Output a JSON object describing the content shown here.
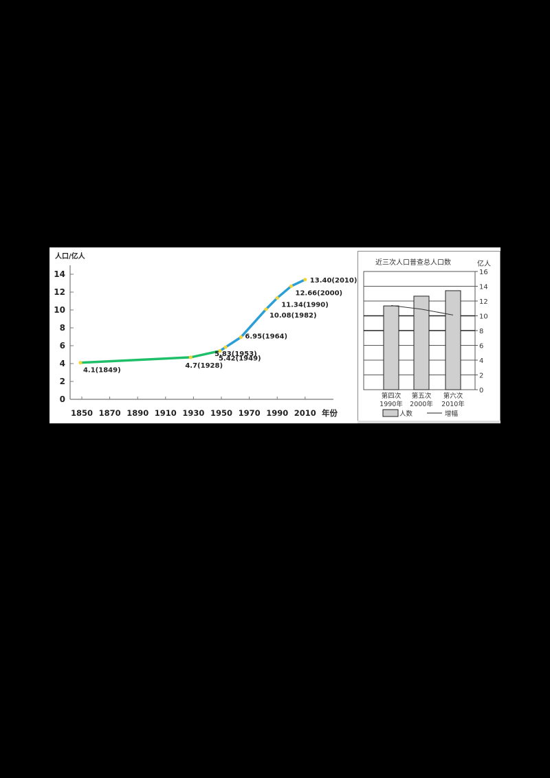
{
  "chart_data": [
    {
      "type": "line",
      "title": "",
      "ylabel": "人口/亿人",
      "xlabel": "年份",
      "ylim": [
        0,
        15
      ],
      "xlim": [
        1840,
        2030
      ],
      "yticks": [
        0,
        2,
        4,
        6,
        8,
        10,
        12,
        14
      ],
      "xticks": [
        1850,
        1870,
        1890,
        1910,
        1930,
        1950,
        1970,
        1990,
        2010
      ],
      "grid": false,
      "x": [
        1849,
        1928,
        1949,
        1953,
        1964,
        1982,
        1990,
        2000,
        2010
      ],
      "values": [
        4.1,
        4.7,
        5.42,
        5.83,
        6.95,
        10.08,
        11.34,
        12.66,
        13.4
      ],
      "annotations": [
        "4.1(1849)",
        "4.7(1928)",
        "5.42(1949)",
        "5.83(1953)",
        "6.95(1964)",
        "10.08(1982)",
        "11.34(1990)",
        "12.66(2000)",
        "13.40(2010)"
      ],
      "segments": [
        {
          "name": "before-1949",
          "color": "#1fbf6a",
          "from": 1849,
          "to": 1949
        },
        {
          "name": "after-1949",
          "color": "#2a9fd6",
          "from": 1949,
          "to": 2010
        }
      ],
      "marker_color": "#f2d43a"
    },
    {
      "type": "bar",
      "title": "近三次人口普查总人口数",
      "ylabel": "亿人",
      "ylim": [
        0,
        16
      ],
      "yticks": [
        0,
        2,
        4,
        6,
        8,
        10,
        12,
        14,
        16
      ],
      "grid": true,
      "categories": [
        "第四次\n1990年",
        "第五次\n2000年",
        "第六次\n2010年"
      ],
      "category_lines": [
        [
          "第四次",
          "1990年"
        ],
        [
          "第五次",
          "2000年"
        ],
        [
          "第六次",
          "2010年"
        ]
      ],
      "series": [
        {
          "name": "人数",
          "type": "bar",
          "values": [
            11.34,
            12.66,
            13.4
          ],
          "color": "#cfcfcf"
        },
        {
          "name": "增幅",
          "type": "line",
          "values": [
            11.4,
            10.9,
            10.1
          ],
          "color": "#333333"
        }
      ],
      "legend": [
        "人数",
        "增幅"
      ],
      "legend_position": "bottom"
    }
  ],
  "left": {
    "ylabel": "人口/亿人",
    "xlabel": "年份"
  },
  "right": {
    "title": "近三次人口普查总人口数",
    "unit": "亿人",
    "legend_bar": "人数",
    "legend_line": "增幅"
  }
}
